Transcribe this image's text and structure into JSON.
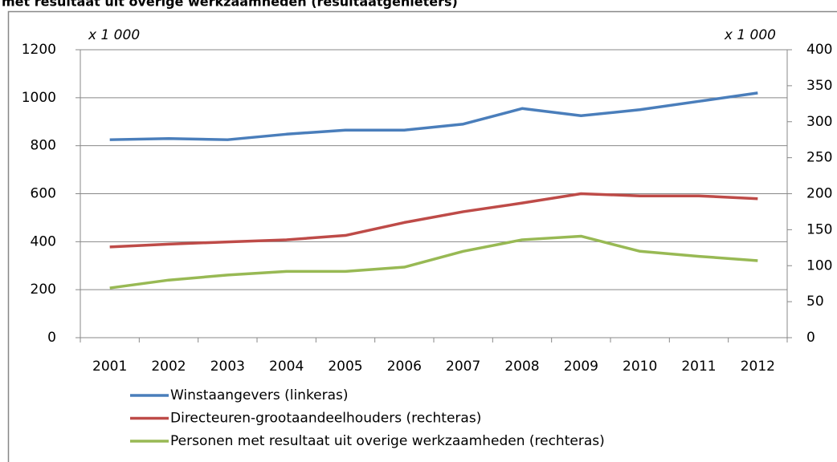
{
  "chart_data": {
    "type": "line",
    "title": "met resultaat uit overige werkzaamheden (resultaatgenieters)",
    "y_unit_label": "x 1 000",
    "y2_unit_label": "x 1 000",
    "categories": [
      "2001",
      "2002",
      "2003",
      "2004",
      "2005",
      "2006",
      "2007",
      "2008",
      "2009",
      "2010",
      "2011",
      "2012"
    ],
    "series": [
      {
        "name": "Winstaangevers (linkeras)",
        "color": "#4a7ebb",
        "axis": "y",
        "values": [
          825,
          830,
          825,
          848,
          865,
          865,
          890,
          955,
          925,
          950,
          985,
          1020
        ]
      },
      {
        "name": "Directeuren-grootaandeelhouders (rechteras)",
        "color": "#be4b48",
        "axis": "y2",
        "values": [
          126,
          130,
          133,
          136,
          142,
          160,
          175,
          187,
          200,
          197,
          197,
          193
        ]
      },
      {
        "name": "Personen met resultaat uit overige werkzaamheden (rechteras)",
        "color": "#98b954",
        "axis": "y2",
        "values": [
          69,
          80,
          87,
          92,
          92,
          98,
          120,
          136,
          141,
          120,
          113,
          107
        ]
      }
    ],
    "ylim": [
      0,
      1200
    ],
    "yticks": [
      0,
      200,
      400,
      600,
      800,
      1000,
      1200
    ],
    "y2lim": [
      0,
      400
    ],
    "y2ticks": [
      0,
      50,
      100,
      150,
      200,
      250,
      300,
      350,
      400
    ],
    "grid": true,
    "legend": "bottom"
  }
}
